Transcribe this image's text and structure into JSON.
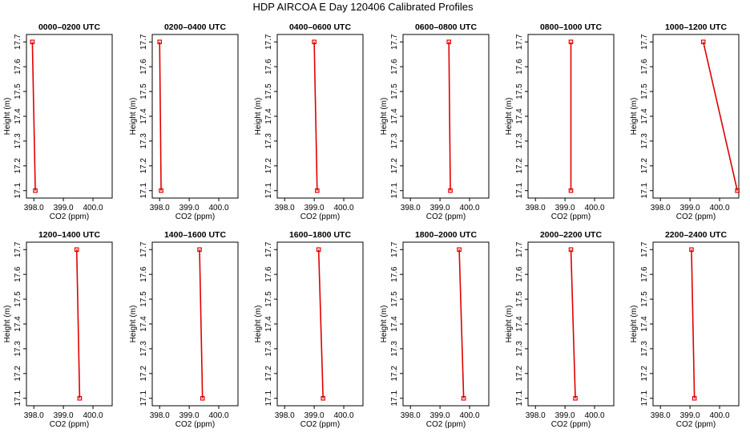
{
  "chart_data": {
    "type": "line",
    "title": "HDP AIRCOA E  Day 120406  Calibrated Profiles",
    "xlabel": "CO2 (ppm)",
    "ylabel": "Height (m)",
    "xlim": [
      397.75,
      400.65
    ],
    "ylim": [
      17.07,
      17.73
    ],
    "xticks": [
      "398.0",
      "399.0",
      "400.0"
    ],
    "yticks": [
      "17.1",
      "17.2",
      "17.3",
      "17.4",
      "17.5",
      "17.6",
      "17.7"
    ],
    "series_color": "#e00000",
    "panels": [
      {
        "title": "0000–0200 UTC",
        "points": [
          {
            "x": 397.95,
            "y": 17.7
          },
          {
            "x": 398.05,
            "y": 17.1
          }
        ]
      },
      {
        "title": "0200–0400 UTC",
        "points": [
          {
            "x": 398.0,
            "y": 17.7
          },
          {
            "x": 398.05,
            "y": 17.1
          }
        ]
      },
      {
        "title": "0400–0600 UTC",
        "points": [
          {
            "x": 399.0,
            "y": 17.7
          },
          {
            "x": 399.1,
            "y": 17.1
          }
        ]
      },
      {
        "title": "0600–0800 UTC",
        "points": [
          {
            "x": 399.3,
            "y": 17.7
          },
          {
            "x": 399.35,
            "y": 17.1
          }
        ]
      },
      {
        "title": "0800–1000 UTC",
        "points": [
          {
            "x": 399.2,
            "y": 17.7
          },
          {
            "x": 399.2,
            "y": 17.1
          }
        ]
      },
      {
        "title": "1000–1200 UTC",
        "points": [
          {
            "x": 399.45,
            "y": 17.7
          },
          {
            "x": 400.6,
            "y": 17.1
          }
        ]
      },
      {
        "title": "1200–1400 UTC",
        "points": [
          {
            "x": 399.45,
            "y": 17.7
          },
          {
            "x": 399.55,
            "y": 17.1
          }
        ]
      },
      {
        "title": "1400–1600 UTC",
        "points": [
          {
            "x": 399.35,
            "y": 17.7
          },
          {
            "x": 399.45,
            "y": 17.1
          }
        ]
      },
      {
        "title": "1600–1800 UTC",
        "points": [
          {
            "x": 399.15,
            "y": 17.7
          },
          {
            "x": 399.3,
            "y": 17.1
          }
        ]
      },
      {
        "title": "1800–2000 UTC",
        "points": [
          {
            "x": 399.65,
            "y": 17.7
          },
          {
            "x": 399.8,
            "y": 17.1
          }
        ]
      },
      {
        "title": "2000–2200 UTC",
        "points": [
          {
            "x": 399.2,
            "y": 17.7
          },
          {
            "x": 399.35,
            "y": 17.1
          }
        ]
      },
      {
        "title": "2200–2400 UTC",
        "points": [
          {
            "x": 399.05,
            "y": 17.7
          },
          {
            "x": 399.15,
            "y": 17.1
          }
        ]
      }
    ]
  }
}
